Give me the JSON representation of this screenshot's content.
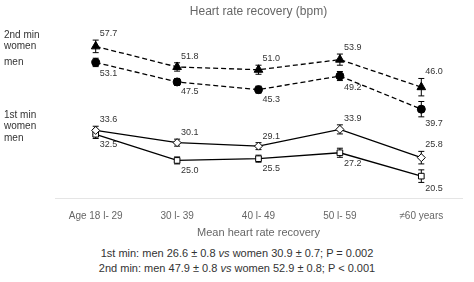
{
  "chart_data": {
    "type": "line",
    "title": "Heart rate recovery (bpm)",
    "xlabel": "Mean heart rate recovery",
    "categories": [
      "Age 18 l- 29",
      "30 l- 39",
      "40 l- 49",
      "50 l- 59",
      "≠60 years"
    ],
    "ylim": [
      14,
      64
    ],
    "tick_labels": "x",
    "grid": false,
    "data_labels": true,
    "series": [
      {
        "color": "#000000",
        "marker": "triangle",
        "line_style": "dashed",
        "values": [
          57.7,
          51.8,
          51.0,
          53.9,
          46.0
        ],
        "errors": [
          1.8,
          1.2,
          1.3,
          1.6,
          2.5
        ],
        "value_labels": [
          "57.7",
          "51.8",
          "51.0",
          "53.9",
          "46.0"
        ]
      },
      {
        "color": "#000000",
        "marker": "circle",
        "line_style": "dashed",
        "values": [
          53.1,
          47.5,
          45.3,
          49.2,
          39.7
        ],
        "errors": [
          1.2,
          1.0,
          1.0,
          1.3,
          2.2
        ],
        "value_labels": [
          "53.1",
          "47.5",
          "45.3",
          "49.2",
          "39.7"
        ]
      },
      {
        "color": "#000000",
        "marker": "open_diamond",
        "line_style": "solid",
        "values": [
          33.6,
          30.1,
          29.1,
          33.9,
          25.8
        ],
        "errors": [
          1.2,
          1.0,
          1.0,
          1.3,
          1.8
        ],
        "value_labels": [
          "33.6",
          "30.1",
          "29.1",
          "33.9",
          "25.8"
        ]
      },
      {
        "color": "#000000",
        "marker": "open_square",
        "line_style": "solid",
        "values": [
          32.5,
          25.0,
          25.5,
          27.2,
          20.5
        ],
        "errors": [
          1.2,
          1.0,
          1.0,
          1.3,
          1.8
        ],
        "value_labels": [
          "32.5",
          "25.0",
          "25.5",
          "27.2",
          "20.5"
        ]
      }
    ],
    "annotations": [
      "2nd min",
      "women",
      "men",
      "1st min",
      "women",
      "men"
    ],
    "footnotes": [
      [
        "1st min: men 26.6 ± 0.8 ",
        "vs",
        " women 30.9 ± 0.7; P = 0.002"
      ],
      [
        "2nd min: men 47.9 ± 0.8 ",
        "vs",
        " women 52.9 ± 0.8; P < 0.001"
      ]
    ]
  }
}
